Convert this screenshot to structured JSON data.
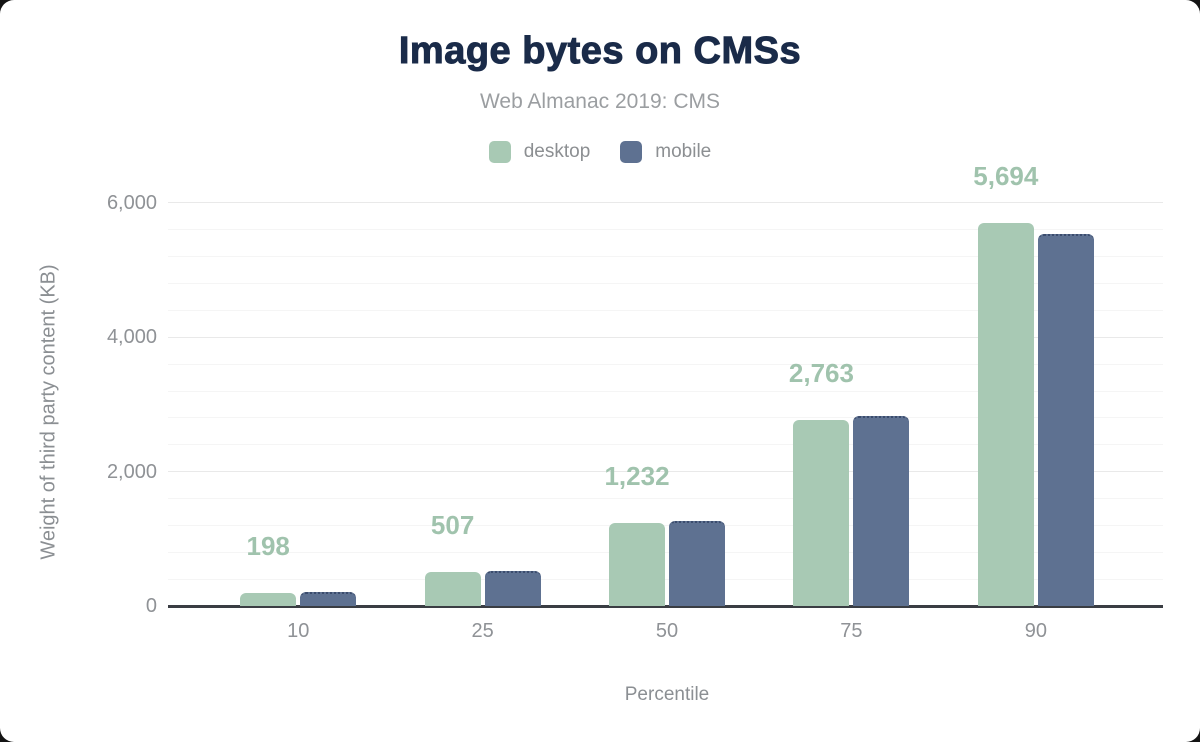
{
  "chart_data": {
    "type": "bar",
    "title": "Image bytes on CMSs",
    "subtitle": "Web Almanac 2019: CMS",
    "xlabel": "Percentile",
    "ylabel": "Weight of third party content (KB)",
    "categories": [
      "10",
      "25",
      "50",
      "75",
      "90"
    ],
    "series": [
      {
        "name": "desktop",
        "color": "#a8c9b4",
        "values": [
          198,
          507,
          1232,
          2763,
          5694
        ],
        "data_labels": [
          "198",
          "507",
          "1,232",
          "2,763",
          "5,694"
        ]
      },
      {
        "name": "mobile",
        "color": "#5e7191",
        "values": [
          210,
          520,
          1260,
          2830,
          5530
        ],
        "data_labels": []
      }
    ],
    "y_axis": {
      "ticks": [
        {
          "label": "0",
          "value": 0
        },
        {
          "label": "2,000",
          "value": 2000
        },
        {
          "label": "4,000",
          "value": 4000
        },
        {
          "label": "6,000",
          "value": 6000
        }
      ],
      "max": 6400,
      "minor_interval": 400,
      "major_interval": 2000
    },
    "legend_position": "top",
    "grid": true,
    "colors": {
      "title": "#1a2b49",
      "subtitle": "#9b9ea1",
      "legend_text": "#8c8f92",
      "axis_text": "#8f9296",
      "axis_title_text": "#8b8f93",
      "data_label": "#a0c3ad",
      "axis_line": "#3a3d43",
      "grid_major": "#e9e9e9",
      "grid_minor": "#f5f5f5"
    }
  }
}
